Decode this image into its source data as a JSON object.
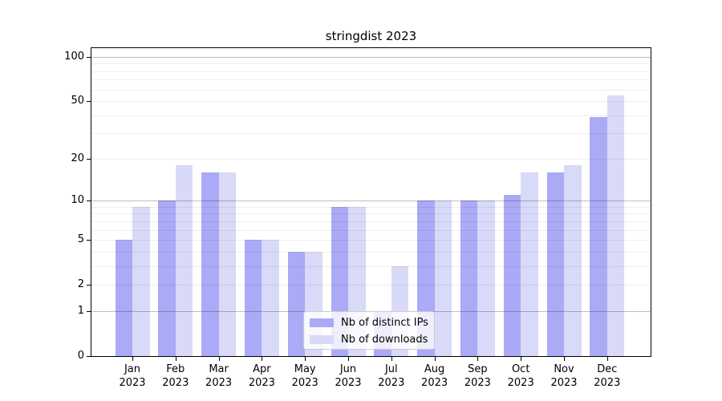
{
  "chart_data": {
    "type": "bar",
    "title": "stringdist 2023",
    "categories": [
      {
        "month": "Jan",
        "year": "2023"
      },
      {
        "month": "Feb",
        "year": "2023"
      },
      {
        "month": "Mar",
        "year": "2023"
      },
      {
        "month": "Apr",
        "year": "2023"
      },
      {
        "month": "May",
        "year": "2023"
      },
      {
        "month": "Jun",
        "year": "2023"
      },
      {
        "month": "Jul",
        "year": "2023"
      },
      {
        "month": "Aug",
        "year": "2023"
      },
      {
        "month": "Sep",
        "year": "2023"
      },
      {
        "month": "Oct",
        "year": "2023"
      },
      {
        "month": "Nov",
        "year": "2023"
      },
      {
        "month": "Dec",
        "year": "2023"
      }
    ],
    "series": [
      {
        "name": "Nb of distinct IPs",
        "color": "#aaaaf6",
        "values": [
          5,
          10,
          16,
          5,
          4,
          9,
          1,
          10,
          10,
          11,
          16,
          39
        ]
      },
      {
        "name": "Nb of downloads",
        "color": "#d9d9f8",
        "values": [
          9,
          18,
          16,
          5,
          4,
          9,
          3,
          10,
          10,
          16,
          18,
          55
        ]
      }
    ],
    "yscale": "log1p",
    "ylim": [
      0,
      100
    ],
    "yticks": [
      100,
      50,
      20,
      10,
      5,
      2,
      1,
      0
    ],
    "gridlines": {
      "major": [
        1,
        10,
        100
      ],
      "minor": [
        2,
        3,
        4,
        5,
        6,
        7,
        8,
        9,
        20,
        30,
        40,
        50,
        60,
        70,
        80,
        90
      ]
    },
    "legend": {
      "position": "lower center",
      "entries": [
        "Nb of distinct IPs",
        "Nb of downloads"
      ]
    },
    "colors": {
      "bar_distinct_ips": "#aaaaf6",
      "bar_downloads": "#d9d9f8",
      "grid_major": "#bfbfbf",
      "grid_minor": "#ededed",
      "spine": "#000000",
      "text": "#000000",
      "legend_border": "#cccccc"
    }
  }
}
